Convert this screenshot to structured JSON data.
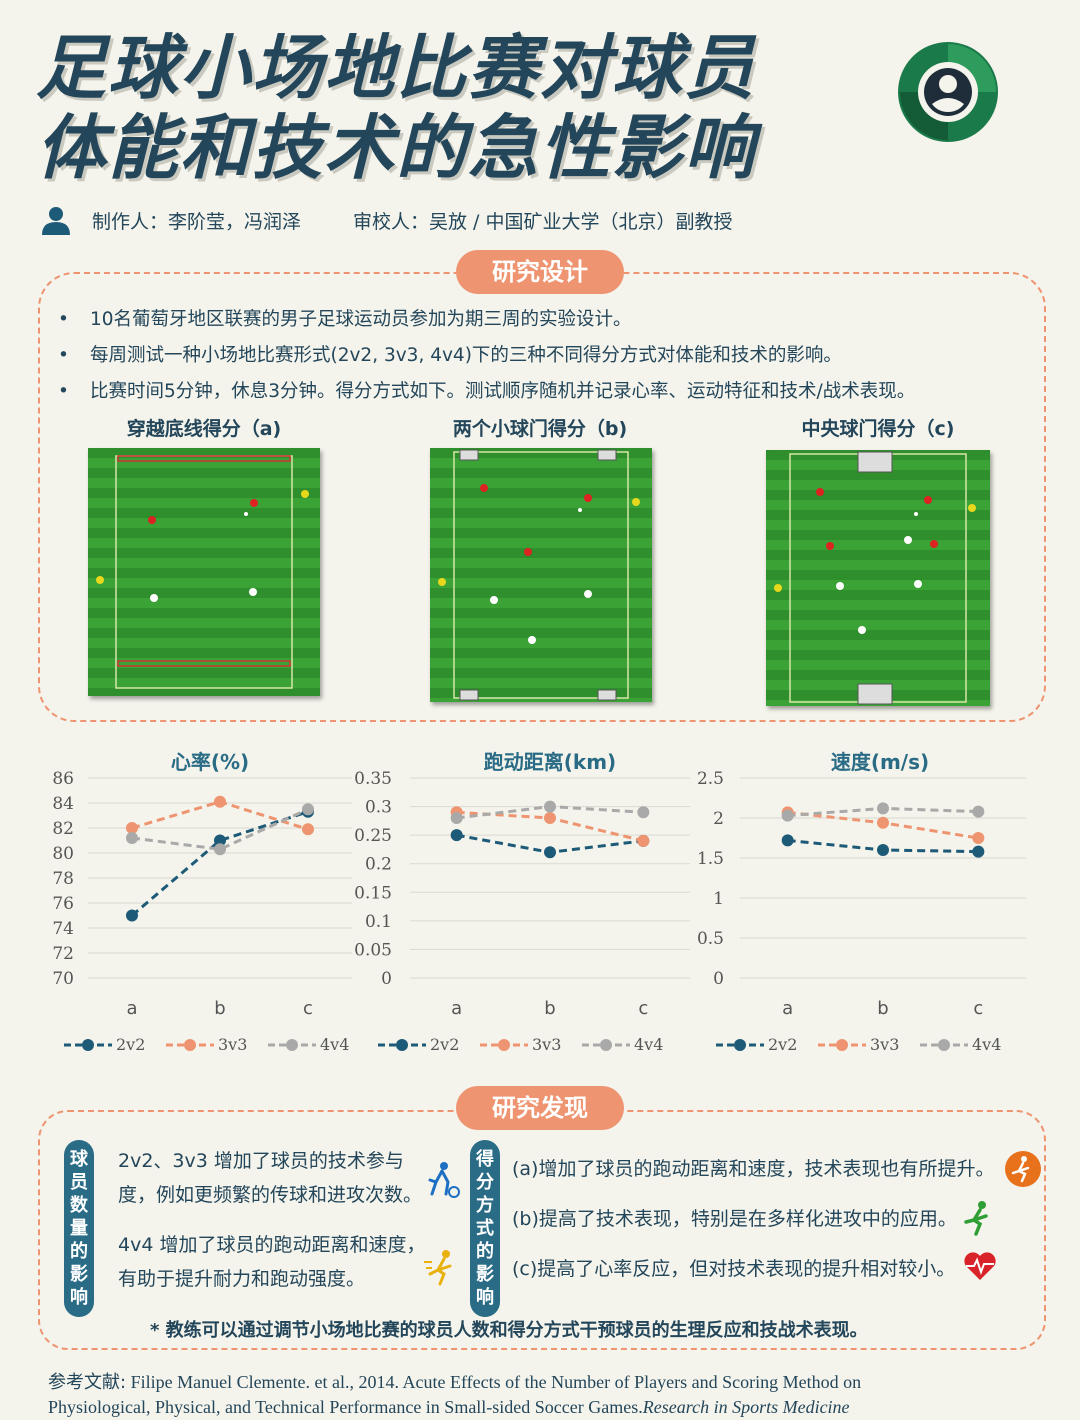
{
  "header": {
    "title_line1": "足球小场地比赛对球员",
    "title_line2": "体能和技术的急性影响",
    "makers": "制作人：李阶莹，冯润泽",
    "reviewer": "审校人：吴放 / 中国矿业大学（北京）副教授"
  },
  "design": {
    "label": "研究设计",
    "bullets": [
      "10名葡萄牙地区联赛的男子足球运动员参加为期三周的实验设计。",
      "每周测试一种小场地比赛形式(2v2, 3v3, 4v4)下的三种不同得分方式对体能和技术的影响。",
      "比赛时间5分钟，休息3分钟。得分方式如下。测试顺序随机并记录心率、运动特征和技术/战术表现。"
    ],
    "fields": [
      {
        "title": "穿越底线得分（a)"
      },
      {
        "title": "两个小球门得分（b)"
      },
      {
        "title": "中央球门得分（c)"
      }
    ]
  },
  "chart_data": [
    {
      "type": "line",
      "title": "心率(%)",
      "categories": [
        "a",
        "b",
        "c"
      ],
      "ylim": [
        70,
        86
      ],
      "yticks": [
        70,
        72,
        74,
        76,
        78,
        80,
        82,
        84,
        86
      ],
      "grid": true,
      "legend": "bottom",
      "series": [
        {
          "name": "2v2",
          "values": [
            75,
            81,
            83.3
          ]
        },
        {
          "name": "3v3",
          "values": [
            82,
            84.1,
            81.9
          ]
        },
        {
          "name": "4v4",
          "values": [
            81.2,
            80.3,
            83.5
          ]
        }
      ]
    },
    {
      "type": "line",
      "title": "跑动距离(km)",
      "categories": [
        "a",
        "b",
        "c"
      ],
      "ylim": [
        0,
        0.35
      ],
      "yticks": [
        0,
        0.05,
        0.1,
        0.15,
        0.2,
        0.25,
        0.3,
        0.35
      ],
      "grid": true,
      "legend": "bottom",
      "series": [
        {
          "name": "2v2",
          "values": [
            0.25,
            0.22,
            0.24
          ]
        },
        {
          "name": "3v3",
          "values": [
            0.29,
            0.28,
            0.24
          ]
        },
        {
          "name": "4v4",
          "values": [
            0.28,
            0.3,
            0.29
          ]
        }
      ]
    },
    {
      "type": "line",
      "title": "速度(m/s)",
      "categories": [
        "a",
        "b",
        "c"
      ],
      "ylim": [
        0,
        2.5
      ],
      "yticks": [
        0,
        0.5,
        1,
        1.5,
        2,
        2.5
      ],
      "grid": true,
      "legend": "bottom",
      "series": [
        {
          "name": "2v2",
          "values": [
            1.72,
            1.6,
            1.58
          ]
        },
        {
          "name": "3v3",
          "values": [
            2.07,
            1.94,
            1.75
          ]
        },
        {
          "name": "4v4",
          "values": [
            2.03,
            2.12,
            2.08
          ]
        }
      ]
    }
  ],
  "colors": {
    "2v2": "#1d5a78",
    "3v3": "#ee9470",
    "4v4": "#a9a9a9",
    "accent": "#ee9470",
    "label_bg": "#2a6b86",
    "field": "#2f8f2c"
  },
  "findings": {
    "label": "研究发现",
    "left_label": "球员数量的影响",
    "left_lines": [
      "2v2、3v3 增加了球员的技术参与",
      "度，例如更频繁的传球和进攻次数。",
      "4v4 增加了球员的跑动距离和速度，",
      "有助于提升耐力和跑动强度。"
    ],
    "right_label": "得分方式的影响",
    "right_lines": [
      "(a)增加了球员的跑动距离和速度，技术表现也有所提升。",
      "(b)提高了技术表现，特别是在多样化进攻中的应用。",
      "(c)提高了心率反应，但对技术表现的提升相对较小。"
    ],
    "icons": [
      "soccer-player-icon",
      "runner-icon",
      "sprint-icon",
      "running-man-icon",
      "heartbeat-icon"
    ],
    "note": "* 教练可以通过调节小场地比赛的球员人数和得分方式干预球员的生理反应和技战术表现。"
  },
  "reference": {
    "label": "参考文献:",
    "text1": " Filipe Manuel Clemente. et al., 2014. Acute Effects of the Number of Players and Scoring Method on",
    "text2": "Physiological, Physical, and Technical Performance in Small-sided Soccer Games.",
    "journal": "Research in Sports Medicine"
  }
}
